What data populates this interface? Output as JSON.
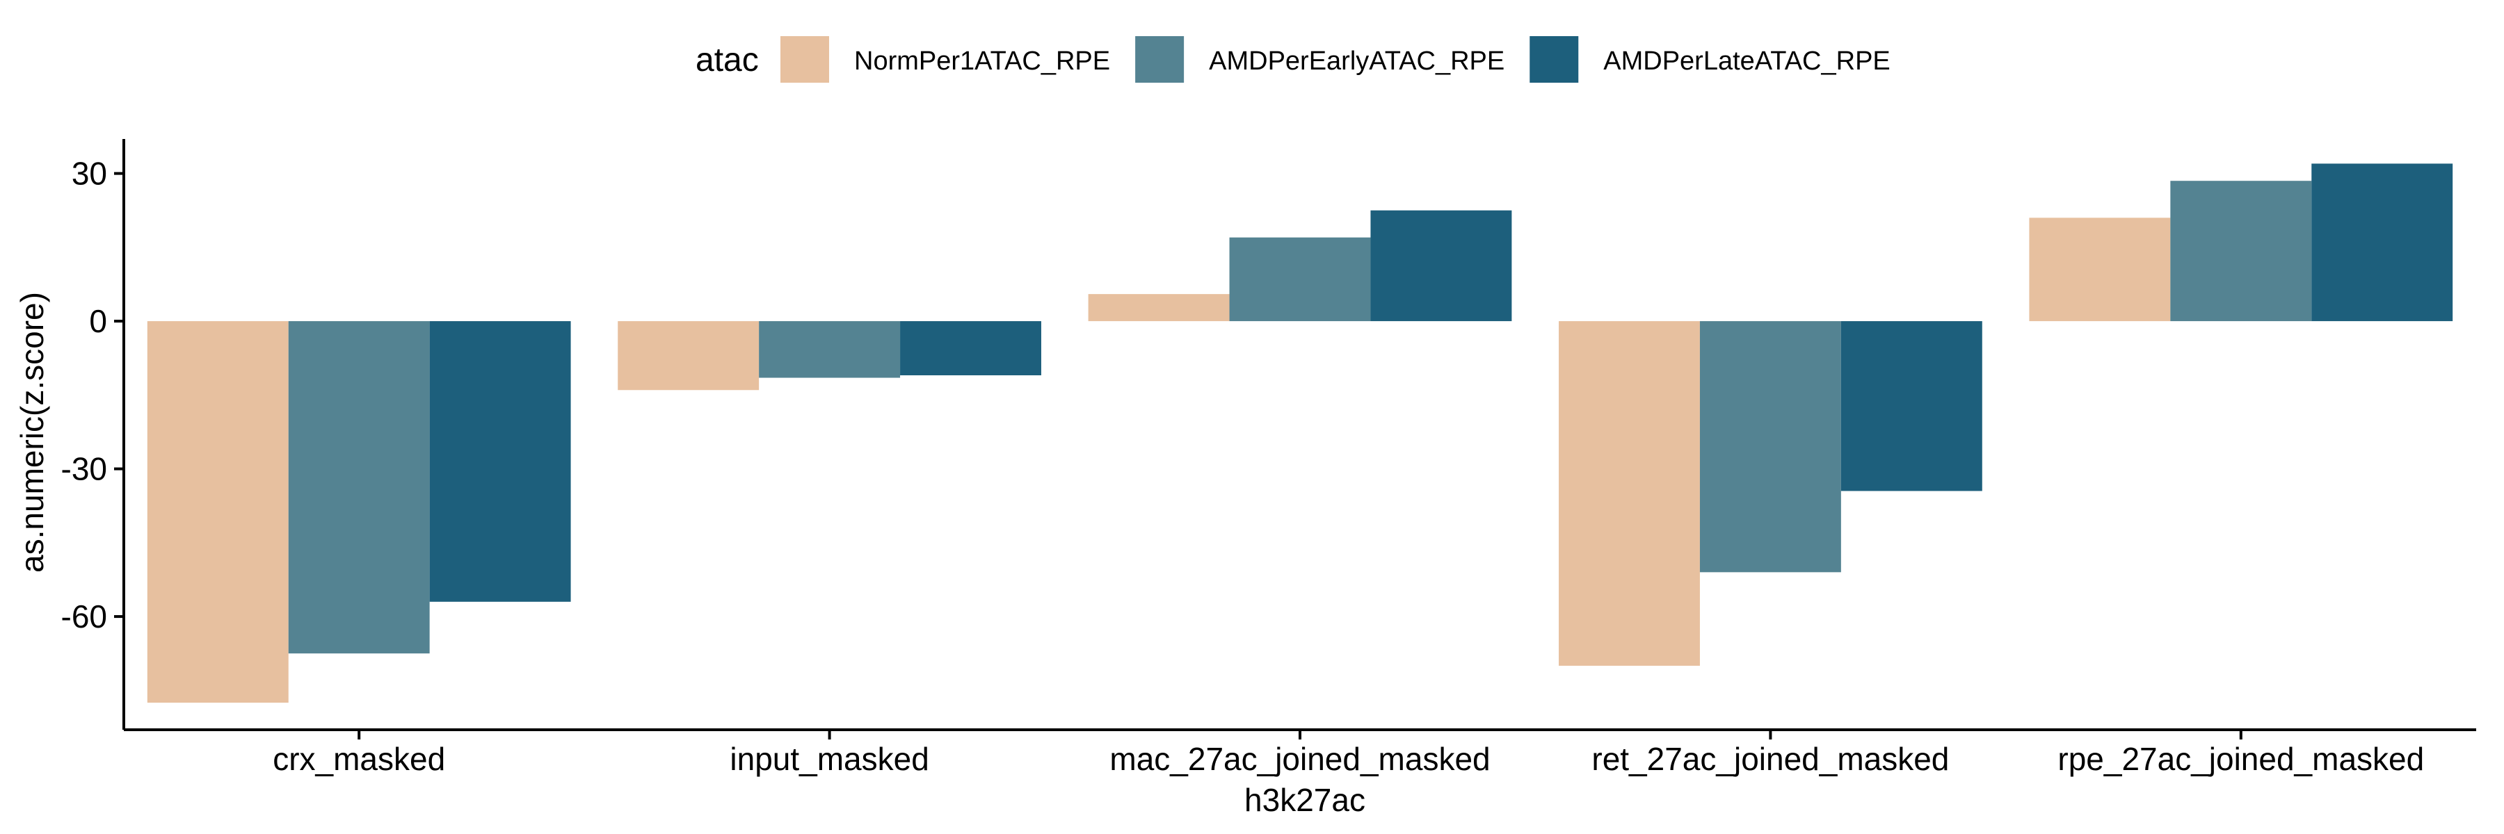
{
  "chart_data": {
    "type": "bar",
    "xlabel": "h3k27ac",
    "ylabel": "as.numeric(z.score)",
    "legend_title": "atac",
    "legend_position": "top",
    "grid": false,
    "ylim": [
      -83,
      37
    ],
    "yticks": [
      30,
      0,
      -30,
      -60
    ],
    "ytick_labels": [
      "30",
      "0",
      "-30",
      "-60"
    ],
    "categories": [
      "crx_masked",
      "input_masked",
      "mac_27ac_joined_masked",
      "ret_27ac_joined_masked",
      "rpe_27ac_joined_masked"
    ],
    "series": [
      {
        "name": "NormPer1ATAC_RPE",
        "color": "#E7C09F",
        "values": [
          -77.5,
          -14,
          5.5,
          -70,
          21
        ]
      },
      {
        "name": "AMDPerEarlyATAC_RPE",
        "color": "#548392",
        "values": [
          -67.5,
          -11.5,
          17,
          -51,
          28.5
        ]
      },
      {
        "name": "AMDPerLateATAC_RPE",
        "color": "#1D5F7C",
        "values": [
          -57,
          -11,
          22.5,
          -34.5,
          32
        ]
      }
    ]
  }
}
